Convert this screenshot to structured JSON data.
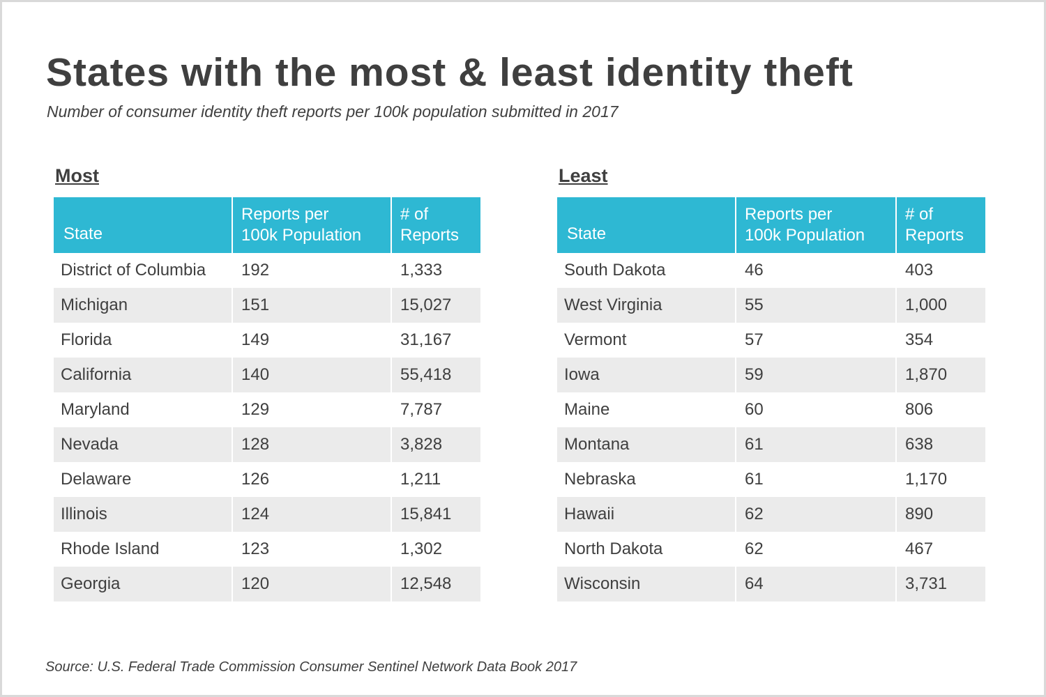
{
  "title": "States with the most & least identity theft",
  "subtitle": "Number of consumer identity theft reports per 100k population submitted in 2017",
  "source": "Source: U.S. Federal Trade Commission Consumer Sentinel Network Data Book 2017",
  "colors": {
    "header_bg": "#2eb8d3",
    "stripe_bg": "#ebebeb",
    "text": "#3f3f3f"
  },
  "chart_data": [
    {
      "type": "table",
      "label": "Most",
      "columns": [
        "State",
        "Reports per 100k Population",
        "# of Reports"
      ],
      "rows": [
        [
          "District of Columbia",
          "192",
          "1,333"
        ],
        [
          "Michigan",
          "151",
          "15,027"
        ],
        [
          "Florida",
          "149",
          "31,167"
        ],
        [
          "California",
          "140",
          "55,418"
        ],
        [
          "Maryland",
          "129",
          "7,787"
        ],
        [
          "Nevada",
          "128",
          "3,828"
        ],
        [
          "Delaware",
          "126",
          "1,211"
        ],
        [
          "Illinois",
          "124",
          "15,841"
        ],
        [
          "Rhode Island",
          "123",
          "1,302"
        ],
        [
          "Georgia",
          "120",
          "12,548"
        ]
      ]
    },
    {
      "type": "table",
      "label": "Least",
      "columns": [
        "State",
        "Reports per 100k Population",
        "# of Reports"
      ],
      "rows": [
        [
          "South Dakota",
          "46",
          "403"
        ],
        [
          "West Virginia",
          "55",
          "1,000"
        ],
        [
          "Vermont",
          "57",
          "354"
        ],
        [
          "Iowa",
          "59",
          "1,870"
        ],
        [
          "Maine",
          "60",
          "806"
        ],
        [
          "Montana",
          "61",
          "638"
        ],
        [
          "Nebraska",
          "61",
          "1,170"
        ],
        [
          "Hawaii",
          "62",
          "890"
        ],
        [
          "North Dakota",
          "62",
          "467"
        ],
        [
          "Wisconsin",
          "64",
          "3,731"
        ]
      ]
    }
  ]
}
